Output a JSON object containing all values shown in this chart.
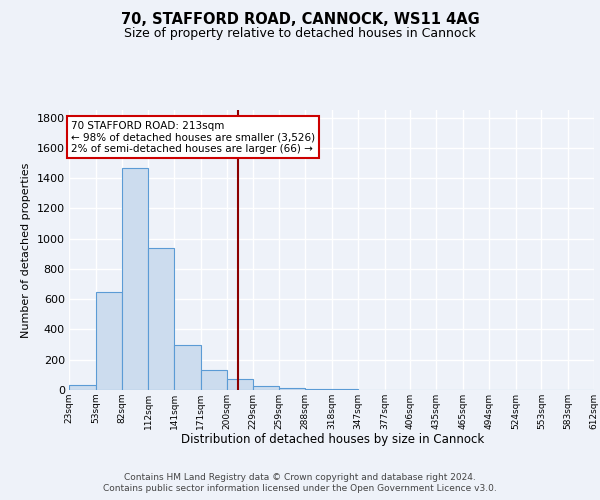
{
  "title1": "70, STAFFORD ROAD, CANNOCK, WS11 4AG",
  "title2": "Size of property relative to detached houses in Cannock",
  "xlabel": "Distribution of detached houses by size in Cannock",
  "ylabel": "Number of detached properties",
  "bin_edges": [
    23,
    53,
    82,
    112,
    141,
    171,
    200,
    229,
    259,
    288,
    318,
    347,
    377,
    406,
    435,
    465,
    494,
    524,
    553,
    583,
    612
  ],
  "bar_heights": [
    35,
    650,
    1470,
    940,
    295,
    135,
    70,
    25,
    15,
    8,
    5,
    3,
    2,
    1,
    1,
    0,
    0,
    0,
    0,
    0
  ],
  "bar_color": "#ccdcee",
  "bar_edge_color": "#5b9bd5",
  "property_size": 213,
  "vline_color": "#8b0000",
  "annotation_text": "70 STAFFORD ROAD: 213sqm\n← 98% of detached houses are smaller (3,526)\n2% of semi-detached houses are larger (66) →",
  "annotation_box_color": "#ffffff",
  "annotation_box_edge_color": "#cc0000",
  "footer1": "Contains HM Land Registry data © Crown copyright and database right 2024.",
  "footer2": "Contains public sector information licensed under the Open Government Licence v3.0.",
  "bg_color": "#eef2f9",
  "plot_bg_color": "#eef2f9",
  "grid_color": "#ffffff",
  "ylim": [
    0,
    1850
  ],
  "yticks": [
    0,
    200,
    400,
    600,
    800,
    1000,
    1200,
    1400,
    1600,
    1800
  ]
}
